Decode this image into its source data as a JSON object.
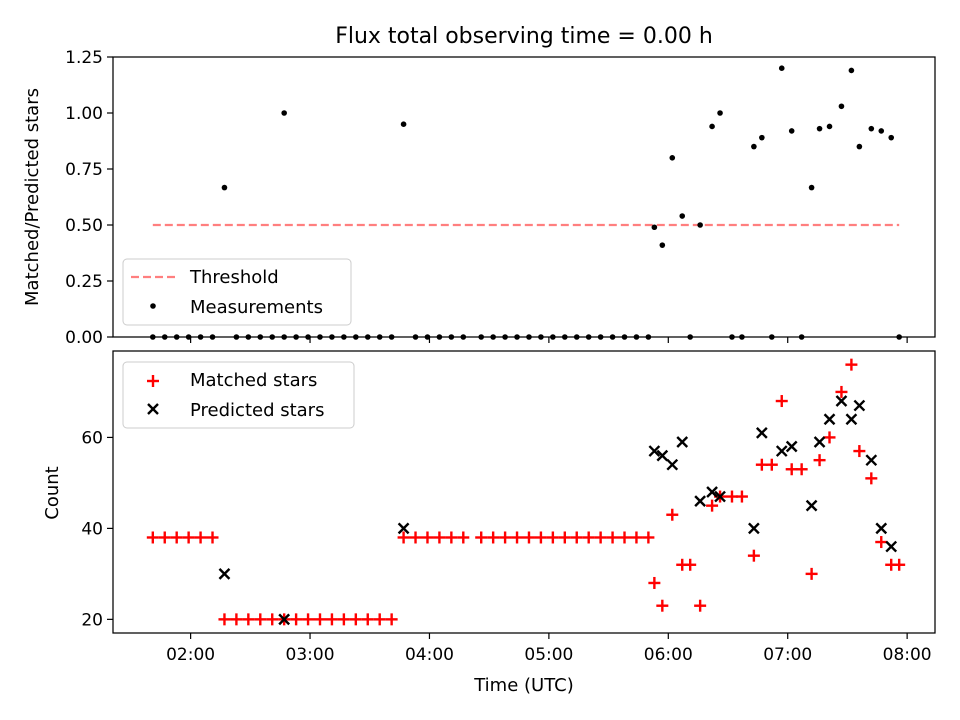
{
  "figure": {
    "title": "Flux total observing time = 0.00 h"
  },
  "chart_data": [
    {
      "type": "scatter",
      "panel": "top",
      "title": "Flux total observing time = 0.00 h",
      "xlabel": "",
      "ylabel": "Matched/Predicted stars",
      "x_unit": "time of day (UTC)",
      "xlim": [
        "01:21",
        "08:14"
      ],
      "ylim": [
        0,
        1.25
      ],
      "xticks": [
        "02:00",
        "03:00",
        "04:00",
        "05:00",
        "06:00",
        "07:00",
        "08:00"
      ],
      "xticklabels_visible": false,
      "yticks": [
        "0.00",
        "0.25",
        "0.50",
        "0.75",
        "1.00",
        "1.25"
      ],
      "grid": false,
      "legend": {
        "placement": "lower-left",
        "entries": [
          "Threshold",
          "Measurements"
        ]
      },
      "series": [
        {
          "name": "Threshold",
          "kind": "dashed-line",
          "color": "#ff7f7f",
          "points": [
            [
              "01:41",
              0.5
            ],
            [
              "07:56",
              0.5
            ]
          ]
        },
        {
          "name": "Measurements",
          "kind": "dots",
          "color": "#000000",
          "points": [
            [
              "01:41",
              0
            ],
            [
              "01:47",
              0
            ],
            [
              "01:53",
              0
            ],
            [
              "01:59",
              0
            ],
            [
              "02:05",
              0
            ],
            [
              "02:11",
              0
            ],
            [
              "02:17",
              0.667
            ],
            [
              "02:23",
              0
            ],
            [
              "02:29",
              0
            ],
            [
              "02:35",
              0
            ],
            [
              "02:41",
              0
            ],
            [
              "02:47",
              0
            ],
            [
              "02:53",
              0
            ],
            [
              "02:59",
              0
            ],
            [
              "03:05",
              0
            ],
            [
              "03:11",
              0
            ],
            [
              "03:17",
              0
            ],
            [
              "03:23",
              0
            ],
            [
              "03:29",
              0
            ],
            [
              "03:35",
              0
            ],
            [
              "03:41",
              0
            ],
            [
              "02:47",
              1.0
            ],
            [
              "03:47",
              0.95
            ],
            [
              "03:53",
              0
            ],
            [
              "03:59",
              0
            ],
            [
              "04:05",
              0
            ],
            [
              "04:11",
              0
            ],
            [
              "04:17",
              0
            ],
            [
              "04:26",
              0
            ],
            [
              "04:32",
              0
            ],
            [
              "04:38",
              0
            ],
            [
              "04:44",
              0
            ],
            [
              "04:50",
              0
            ],
            [
              "04:56",
              0
            ],
            [
              "05:02",
              0
            ],
            [
              "05:08",
              0
            ],
            [
              "05:14",
              0
            ],
            [
              "05:20",
              0
            ],
            [
              "05:26",
              0
            ],
            [
              "05:32",
              0
            ],
            [
              "05:38",
              0
            ],
            [
              "05:44",
              0
            ],
            [
              "05:50",
              0
            ],
            [
              "05:53",
              0.49
            ],
            [
              "05:57",
              0.41
            ],
            [
              "06:02",
              0.8
            ],
            [
              "06:07",
              0.54
            ],
            [
              "06:11",
              0
            ],
            [
              "06:16",
              0.5
            ],
            [
              "06:22",
              0.94
            ],
            [
              "06:26",
              1.0
            ],
            [
              "06:32",
              0
            ],
            [
              "06:37",
              0
            ],
            [
              "06:43",
              0.85
            ],
            [
              "06:47",
              0.89
            ],
            [
              "06:52",
              0
            ],
            [
              "06:57",
              1.2
            ],
            [
              "07:02",
              0.92
            ],
            [
              "07:07",
              0
            ],
            [
              "07:12",
              0.667
            ],
            [
              "07:16",
              0.93
            ],
            [
              "07:21",
              0.94
            ],
            [
              "07:27",
              1.03
            ],
            [
              "07:32",
              1.19
            ],
            [
              "07:36",
              0.85
            ],
            [
              "07:42",
              0.93
            ],
            [
              "07:47",
              0.92
            ],
            [
              "07:52",
              0.89
            ],
            [
              "07:56",
              0
            ]
          ]
        }
      ]
    },
    {
      "type": "scatter",
      "panel": "bottom",
      "xlabel": "Time (UTC)",
      "ylabel": "Count",
      "x_unit": "time of day (UTC)",
      "xlim": [
        "01:21",
        "08:14"
      ],
      "ylim": [
        17,
        79
      ],
      "xticks": [
        "02:00",
        "03:00",
        "04:00",
        "05:00",
        "06:00",
        "07:00",
        "08:00"
      ],
      "yticks": [
        "20",
        "40",
        "60"
      ],
      "grid": false,
      "legend": {
        "placement": "top-left",
        "entries": [
          "Matched stars",
          "Predicted stars"
        ]
      },
      "series": [
        {
          "name": "Matched stars",
          "marker": "+",
          "color": "#ff0000",
          "points": [
            [
              "01:41",
              38
            ],
            [
              "01:47",
              38
            ],
            [
              "01:53",
              38
            ],
            [
              "01:59",
              38
            ],
            [
              "02:05",
              38
            ],
            [
              "02:11",
              38
            ],
            [
              "02:17",
              20
            ],
            [
              "02:23",
              20
            ],
            [
              "02:29",
              20
            ],
            [
              "02:35",
              20
            ],
            [
              "02:41",
              20
            ],
            [
              "02:47",
              20
            ],
            [
              "02:53",
              20
            ],
            [
              "02:59",
              20
            ],
            [
              "03:05",
              20
            ],
            [
              "03:11",
              20
            ],
            [
              "03:17",
              20
            ],
            [
              "03:23",
              20
            ],
            [
              "03:29",
              20
            ],
            [
              "03:35",
              20
            ],
            [
              "03:41",
              20
            ],
            [
              "03:47",
              38
            ],
            [
              "03:53",
              38
            ],
            [
              "03:59",
              38
            ],
            [
              "04:05",
              38
            ],
            [
              "04:11",
              38
            ],
            [
              "04:17",
              38
            ],
            [
              "04:26",
              38
            ],
            [
              "04:32",
              38
            ],
            [
              "04:38",
              38
            ],
            [
              "04:44",
              38
            ],
            [
              "04:50",
              38
            ],
            [
              "04:56",
              38
            ],
            [
              "05:02",
              38
            ],
            [
              "05:08",
              38
            ],
            [
              "05:14",
              38
            ],
            [
              "05:20",
              38
            ],
            [
              "05:26",
              38
            ],
            [
              "05:32",
              38
            ],
            [
              "05:38",
              38
            ],
            [
              "05:44",
              38
            ],
            [
              "05:50",
              38
            ],
            [
              "05:53",
              28
            ],
            [
              "05:57",
              23
            ],
            [
              "06:02",
              43
            ],
            [
              "06:07",
              32
            ],
            [
              "06:11",
              32
            ],
            [
              "06:16",
              23
            ],
            [
              "06:22",
              45
            ],
            [
              "06:26",
              47
            ],
            [
              "06:32",
              47
            ],
            [
              "06:37",
              47
            ],
            [
              "06:43",
              34
            ],
            [
              "06:47",
              54
            ],
            [
              "06:52",
              54
            ],
            [
              "06:57",
              68
            ],
            [
              "07:02",
              53
            ],
            [
              "07:07",
              53
            ],
            [
              "07:12",
              30
            ],
            [
              "07:16",
              55
            ],
            [
              "07:21",
              60
            ],
            [
              "07:27",
              70
            ],
            [
              "07:32",
              76
            ],
            [
              "07:36",
              57
            ],
            [
              "07:42",
              51
            ],
            [
              "07:47",
              37
            ],
            [
              "07:52",
              32
            ],
            [
              "07:56",
              32
            ]
          ]
        },
        {
          "name": "Predicted stars",
          "marker": "x",
          "color": "#000000",
          "points": [
            [
              "02:17",
              30
            ],
            [
              "02:47",
              20
            ],
            [
              "03:47",
              40
            ],
            [
              "05:53",
              57
            ],
            [
              "05:57",
              56
            ],
            [
              "06:02",
              54
            ],
            [
              "06:07",
              59
            ],
            [
              "06:16",
              46
            ],
            [
              "06:22",
              48
            ],
            [
              "06:26",
              47
            ],
            [
              "06:43",
              40
            ],
            [
              "06:47",
              61
            ],
            [
              "06:57",
              57
            ],
            [
              "07:02",
              58
            ],
            [
              "07:12",
              45
            ],
            [
              "07:16",
              59
            ],
            [
              "07:21",
              64
            ],
            [
              "07:27",
              68
            ],
            [
              "07:32",
              64
            ],
            [
              "07:36",
              67
            ],
            [
              "07:42",
              55
            ],
            [
              "07:47",
              40
            ],
            [
              "07:52",
              36
            ]
          ]
        }
      ]
    }
  ]
}
